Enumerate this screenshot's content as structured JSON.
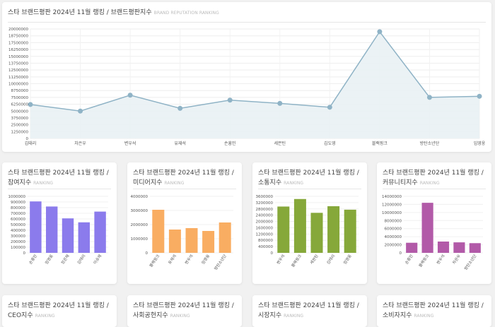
{
  "main": {
    "title": "스타 브랜드평판 2024년 11월 랭킹 / 브랜드평판지수",
    "subtitle": "BRAND REPUTATION RANKING"
  },
  "cards": [
    {
      "title": "스타 브랜드평판 2024년 11월 랭킹 / 참여지수",
      "subtitle": "RANKING"
    },
    {
      "title": "스타 브랜드평판 2024년 11월 랭킹 / 미디어지수",
      "subtitle": "RANKING"
    },
    {
      "title": "스타 브랜드평판 2024년 11월 랭킹 / 소통지수",
      "subtitle": "RANKING"
    },
    {
      "title": "스타 브랜드평판 2024년 11월 랭킹 / 커뮤니티지수",
      "subtitle": "RANKING"
    },
    {
      "title": "스타 브랜드평판 2024년 11월 랭킹 / CEO지수",
      "subtitle": "RANKING"
    },
    {
      "title": "스타 브랜드평판 2024년 11월 랭킹 / 사회공헌지수",
      "subtitle": "RANKING"
    },
    {
      "title": "스타 브랜드평판 2024년 11월 랭킹 / 시장지수",
      "subtitle": "RANKING"
    },
    {
      "title": "스타 브랜드평판 2024년 11월 랭킹 / 소비자지수",
      "subtitle": "RANKING"
    }
  ],
  "colors": {
    "line": "#8fb3c6",
    "area": "#e9f1f4",
    "purple": "#8b7bec",
    "orange": "#f9ad62",
    "green": "#86a83a",
    "magenta": "#b25aa8"
  },
  "chart_data": [
    {
      "type": "area",
      "categories": [
        "김태리",
        "차은우",
        "변우석",
        "유재석",
        "손흥민",
        "세븐틴",
        "김도영",
        "블랙핑크",
        "방탄소년단",
        "임영웅"
      ],
      "values": [
        6200000,
        5000000,
        7900000,
        5500000,
        7000000,
        6400000,
        5700000,
        19500000,
        7500000,
        7700000
      ],
      "ylim": [
        0,
        20000000
      ],
      "yticks": [
        "0",
        "1250000",
        "2500000",
        "3750000",
        "5000000",
        "6250000",
        "7500000",
        "8750000",
        "10000000",
        "11250000",
        "12500000",
        "13750000",
        "15000000",
        "16250000",
        "17500000",
        "18750000",
        "20000000"
      ],
      "grid": true
    },
    {
      "type": "bar",
      "categories": [
        "손흥민",
        "임영웅",
        "정은채",
        "김태리",
        "이승재"
      ],
      "values": [
        910000,
        820000,
        610000,
        540000,
        730000
      ],
      "ylim": [
        0,
        1000000
      ],
      "yticks": [
        "0",
        "100000",
        "200000",
        "300000",
        "400000",
        "500000",
        "600000",
        "700000",
        "800000",
        "900000",
        "1000000"
      ]
    },
    {
      "type": "bar",
      "categories": [
        "블랙핑크",
        "유재석",
        "변우석",
        "임영웅",
        "방탄소년단"
      ],
      "values": [
        3050000,
        1650000,
        1750000,
        1550000,
        2150000
      ],
      "ylim": [
        0,
        4000000
      ],
      "yticks": [
        "0",
        "1000000",
        "2000000",
        "3000000",
        "4000000"
      ]
    },
    {
      "type": "bar",
      "categories": [
        "변우석",
        "블랙핑크",
        "세븐틴",
        "김태리",
        "임영웅"
      ],
      "values": [
        2950000,
        3430000,
        2550000,
        2970000,
        2750000
      ],
      "ylim": [
        0,
        3600000
      ],
      "yticks": [
        "0",
        "400000",
        "800000",
        "1200000",
        "1600000",
        "2000000",
        "2400000",
        "2800000",
        "3200000",
        "3600000"
      ]
    },
    {
      "type": "bar",
      "categories": [
        "손흥민",
        "블랙핑크",
        "변우석",
        "차은우",
        "방탄소년단"
      ],
      "values": [
        2500000,
        12400000,
        2800000,
        2600000,
        2400000
      ],
      "ylim": [
        0,
        14000000
      ],
      "yticks": [
        "0",
        "2000000",
        "4000000",
        "6000000",
        "8000000",
        "10000000",
        "12000000",
        "14000000"
      ]
    }
  ]
}
